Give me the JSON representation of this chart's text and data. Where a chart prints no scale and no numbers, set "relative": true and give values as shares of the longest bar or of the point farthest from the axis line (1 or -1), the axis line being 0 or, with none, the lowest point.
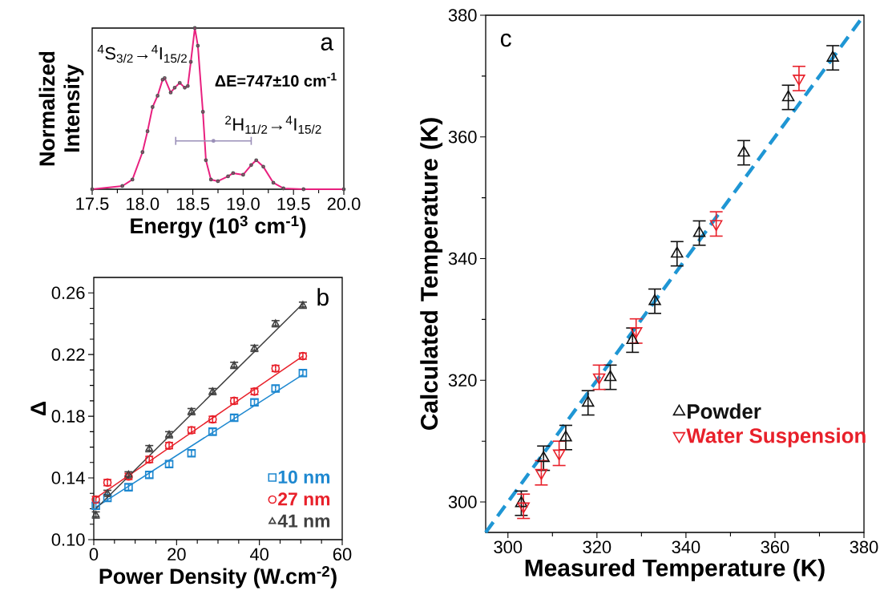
{
  "chart_data": [
    {
      "type": "line",
      "xlabel": "Energy (10$^{3}$ cm$^{-1}$)",
      "ylabel": "Normalized Intensity",
      "relative": true,
      "xlim": [
        17.5,
        20.0
      ],
      "xticks": [
        {
          "value": 17.5,
          "label": "17.5"
        },
        {
          "value": 17.75,
          "label": null
        },
        {
          "value": 18.0,
          "label": "18.0"
        },
        {
          "value": 18.25,
          "label": null
        },
        {
          "value": 18.5,
          "label": "18.5"
        },
        {
          "value": 18.75,
          "label": null
        },
        {
          "value": 19.0,
          "label": "19.0"
        },
        {
          "value": 19.25,
          "label": null
        },
        {
          "value": 19.5,
          "label": "19.5"
        },
        {
          "value": 19.75,
          "label": null
        },
        {
          "value": 20.0,
          "label": "20.0"
        }
      ],
      "annotations": [
        "a",
        "$^{4}$S$_{3/2}$→$^{4}$I$_{15/2}$",
        "ΔE=747±10 cm$^{-1}$",
        "$^{2}$H$_{11/2}$→$^{4}$I$_{15/2}$"
      ],
      "series": [
        {
          "type": "scatter",
          "marker": "circle",
          "color": "#555555",
          "x": [
            17.5,
            17.8,
            17.9,
            18.0,
            18.05,
            18.1,
            18.15,
            18.2,
            18.22,
            18.28,
            18.32,
            18.37,
            18.42,
            18.45,
            18.48,
            18.52,
            18.55,
            18.6,
            18.63,
            18.68,
            18.75,
            18.85,
            18.9,
            19.0,
            19.08,
            19.13,
            19.2,
            19.3,
            19.4,
            19.6,
            20.0
          ],
          "values": [
            0,
            0.02,
            0.06,
            0.23,
            0.36,
            0.51,
            0.58,
            0.68,
            0.69,
            0.6,
            0.63,
            0.66,
            0.63,
            0.64,
            0.79,
            1.0,
            0.89,
            0.48,
            0.18,
            0.06,
            0.05,
            0.08,
            0.1,
            0.09,
            0.15,
            0.18,
            0.14,
            0.04,
            0.005,
            0,
            0
          ]
        },
        {
          "type": "line",
          "color": "#e8207f",
          "x": [
            17.5,
            17.8,
            17.9,
            18.0,
            18.05,
            18.1,
            18.15,
            18.2,
            18.22,
            18.28,
            18.32,
            18.37,
            18.42,
            18.45,
            18.48,
            18.52,
            18.55,
            18.6,
            18.63,
            18.68,
            18.75,
            18.85,
            18.9,
            19.0,
            19.08,
            19.13,
            19.2,
            19.3,
            19.4,
            19.6,
            20.0
          ],
          "values": [
            0,
            0.02,
            0.06,
            0.23,
            0.36,
            0.51,
            0.58,
            0.68,
            0.69,
            0.6,
            0.63,
            0.66,
            0.63,
            0.64,
            0.79,
            1.0,
            0.89,
            0.48,
            0.18,
            0.06,
            0.05,
            0.08,
            0.1,
            0.09,
            0.15,
            0.18,
            0.14,
            0.04,
            0.005,
            0,
            0
          ]
        },
        {
          "type": "scatter",
          "marker": "none",
          "color": "#9a8fb8",
          "x": [
            18.705
          ],
          "values": [
            0.3
          ],
          "xerrors": [
            0.375
          ]
        }
      ]
    },
    {
      "type": "scatter",
      "xlabel": "Power Density (W.cm$^{-2}$)",
      "ylabel": "Δ",
      "xlim": [
        0,
        60
      ],
      "ylim": [
        0.1,
        0.27
      ],
      "xticks": [
        0,
        {
          "value": 5,
          "label": null
        },
        {
          "value": 10,
          "label": null
        },
        {
          "value": 15,
          "label": null
        },
        20,
        {
          "value": 25,
          "label": null
        },
        {
          "value": 30,
          "label": null
        },
        {
          "value": 35,
          "label": null
        },
        40,
        {
          "value": 45,
          "label": null
        },
        {
          "value": 50,
          "label": null
        },
        {
          "value": 55,
          "label": null
        },
        60
      ],
      "yticks": [
        {
          "value": 0.1,
          "label": "0.10"
        },
        {
          "value": 0.11,
          "label": null
        },
        {
          "value": 0.12,
          "label": null
        },
        {
          "value": 0.13,
          "label": null
        },
        0.14,
        {
          "value": 0.15,
          "label": null
        },
        {
          "value": 0.16,
          "label": null
        },
        {
          "value": 0.17,
          "label": null
        },
        0.18,
        {
          "value": 0.19,
          "label": null
        },
        {
          "value": 0.2,
          "label": null
        },
        {
          "value": 0.21,
          "label": null
        },
        0.22,
        {
          "value": 0.23,
          "label": null
        },
        {
          "value": 0.24,
          "label": null
        },
        {
          "value": 0.25,
          "label": null
        },
        0.26
      ],
      "legend": "bottom right",
      "annotations": [
        "b"
      ],
      "x": [
        0.5,
        3.3,
        8.4,
        13.4,
        18.2,
        23.6,
        28.7,
        33.9,
        38.8,
        43.9,
        50.5
      ],
      "series": [
        {
          "name": "10 nm",
          "marker": "square",
          "color": "#1e88d0",
          "values": [
            0.122,
            0.127,
            0.134,
            0.142,
            0.149,
            0.156,
            0.17,
            0.179,
            0.189,
            0.198,
            0.208
          ],
          "errors": [
            0.002,
            0.002,
            0.002,
            0.002,
            0.002,
            0.002,
            0.002,
            0.002,
            0.002,
            0.002,
            0.002
          ]
        },
        {
          "name": "27 nm",
          "marker": "circle",
          "color": "#e8202a",
          "values": [
            0.126,
            0.137,
            0.141,
            0.152,
            0.161,
            0.171,
            0.178,
            0.19,
            0.196,
            0.211,
            0.219
          ],
          "errors": [
            0.002,
            0.002,
            0.002,
            0.002,
            0.002,
            0.002,
            0.002,
            0.002,
            0.002,
            0.002,
            0.002
          ]
        },
        {
          "name": "41 nm",
          "marker": "triangle",
          "color": "#404040",
          "values": [
            0.116,
            0.13,
            0.142,
            0.159,
            0.168,
            0.183,
            0.196,
            0.213,
            0.224,
            0.24,
            0.252
          ],
          "errors": [
            0.002,
            0.002,
            0.002,
            0.002,
            0.002,
            0.002,
            0.002,
            0.002,
            0.002,
            0.002,
            0.002
          ]
        },
        {
          "type": "line",
          "color": "#1e88d0",
          "x": [
            0.5,
            50.5
          ],
          "values": [
            0.121,
            0.207
          ]
        },
        {
          "type": "line",
          "color": "#e8202a",
          "x": [
            0.5,
            50.5
          ],
          "values": [
            0.127,
            0.219
          ]
        },
        {
          "type": "line",
          "color": "#404040",
          "x": [
            0.5,
            50.5
          ],
          "values": [
            0.12,
            0.253
          ]
        }
      ]
    },
    {
      "type": "scatter",
      "xlabel": "Measured Temperature (K)",
      "ylabel": "Calculated Temperature (K)",
      "xlim": [
        295,
        380
      ],
      "ylim": [
        295,
        380
      ],
      "xticks": [
        300,
        {
          "value": 310,
          "label": null
        },
        320,
        {
          "value": 330,
          "label": null
        },
        340,
        {
          "value": 350,
          "label": null
        },
        360,
        {
          "value": 370,
          "label": null
        },
        380
      ],
      "yticks": [
        300,
        {
          "value": 310,
          "label": null
        },
        320,
        {
          "value": 330,
          "label": null
        },
        340,
        {
          "value": 350,
          "label": null
        },
        360,
        {
          "value": 370,
          "label": null
        },
        380
      ],
      "legend": "right",
      "annotations": [
        "c"
      ],
      "series": [
        {
          "type": "line",
          "line_style": "dashed",
          "color": "#1f96d4",
          "x": [
            295,
            380
          ],
          "values": [
            295,
            380
          ]
        },
        {
          "name": "Powder",
          "marker": "triangle",
          "color": "#111111",
          "x": [
            303,
            308,
            313,
            318,
            323,
            328,
            333,
            338,
            343,
            353,
            363,
            373
          ],
          "values": [
            299.8,
            307.2,
            310.6,
            316.3,
            320.5,
            326.6,
            333.0,
            340.8,
            344.2,
            357.4,
            366.5,
            373.0
          ],
          "errors": [
            2,
            2,
            2,
            2,
            2,
            2,
            2,
            2,
            2,
            2,
            2,
            2
          ]
        },
        {
          "name": "Water Suspension",
          "marker": "triangle-down",
          "color": "#e8202a",
          "x": [
            303.5,
            307.5,
            311.5,
            320.5,
            328.8,
            346.8,
            365.4
          ],
          "values": [
            299.3,
            304.8,
            308.0,
            320.5,
            328.1,
            345.7,
            369.6
          ],
          "errors": [
            2,
            2,
            2,
            2,
            2,
            2,
            2
          ]
        }
      ]
    }
  ]
}
